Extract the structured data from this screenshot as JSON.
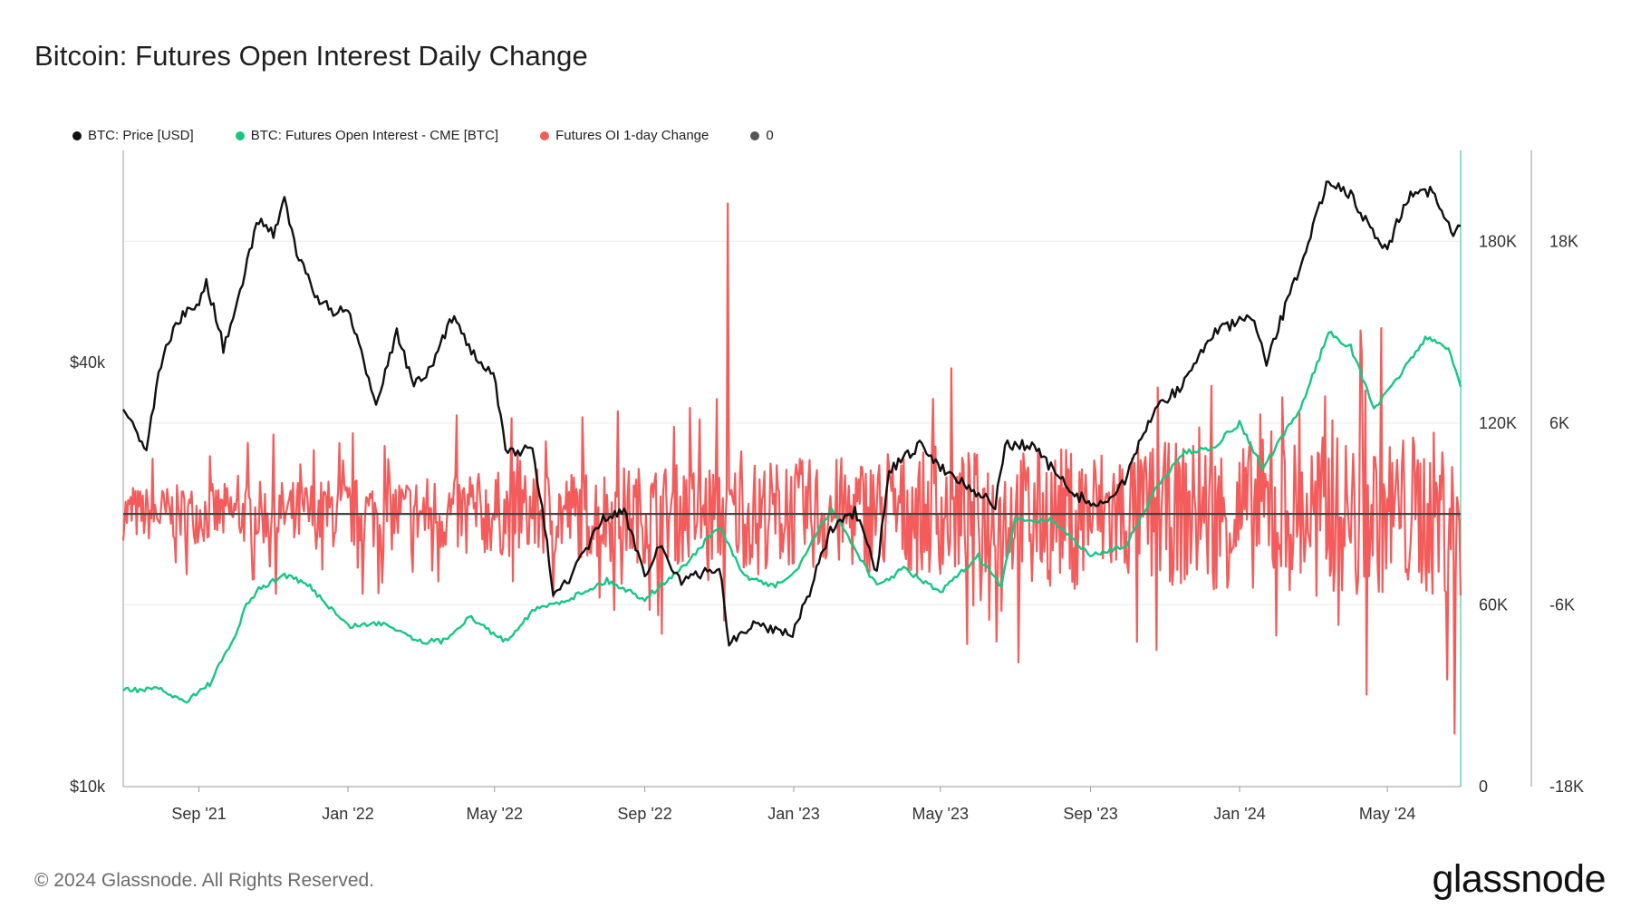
{
  "title": "Bitcoin: Futures Open Interest Daily Change",
  "legend": [
    {
      "label": "BTC: Price [USD]",
      "color": "#111111"
    },
    {
      "label": "BTC: Futures Open Interest - CME [BTC]",
      "color": "#16c784"
    },
    {
      "label": "Futures OI 1-day Change",
      "color": "#f45b5b"
    },
    {
      "label": "0",
      "color": "#555555"
    }
  ],
  "footer": "© 2024 Glassnode. All Rights Reserved.",
  "brand": "glassnode",
  "chart_data": {
    "type": "line",
    "title": "Bitcoin: Futures Open Interest Daily Change",
    "x_ticks": [
      "Sep '21",
      "Jan '22",
      "May '22",
      "Sep '22",
      "Jan '23",
      "May '23",
      "Sep '23",
      "Jan '24",
      "May '24"
    ],
    "x_tick_dates": [
      "2021-09-01",
      "2022-01-01",
      "2022-05-01",
      "2022-09-01",
      "2023-01-01",
      "2023-05-01",
      "2023-09-01",
      "2024-01-01",
      "2024-05-01"
    ],
    "x_range": [
      "2021-07-01",
      "2024-06-30"
    ],
    "axes": {
      "left": {
        "scale": "log",
        "range": [
          10000,
          80000
        ],
        "ticks": [
          "$10k",
          "$40k"
        ],
        "tick_values": [
          10000,
          40000
        ]
      },
      "right1": {
        "scale": "linear",
        "range": [
          0,
          210000
        ],
        "ticks": [
          "0",
          "60K",
          "120K",
          "180K"
        ],
        "tick_values": [
          0,
          60000,
          120000,
          180000
        ]
      },
      "right2": {
        "scale": "linear",
        "range": [
          -18000,
          24000
        ],
        "ticks": [
          "-18K",
          "-6K",
          "6K",
          "18K"
        ],
        "tick_values": [
          -18000,
          -6000,
          6000,
          18000
        ]
      }
    },
    "grid": true,
    "series": [
      {
        "name": "BTC: Price [USD]",
        "axis": "left",
        "color": "#111111",
        "points": [
          [
            "2021-07-01",
            34500
          ],
          [
            "2021-07-20",
            30000
          ],
          [
            "2021-08-01",
            40000
          ],
          [
            "2021-08-15",
            46000
          ],
          [
            "2021-09-01",
            48500
          ],
          [
            "2021-09-07",
            52000
          ],
          [
            "2021-09-21",
            42000
          ],
          [
            "2021-10-01",
            47000
          ],
          [
            "2021-10-20",
            64000
          ],
          [
            "2021-11-01",
            61000
          ],
          [
            "2021-11-10",
            68000
          ],
          [
            "2021-11-20",
            57000
          ],
          [
            "2021-12-05",
            50000
          ],
          [
            "2021-12-20",
            47000
          ],
          [
            "2022-01-01",
            47500
          ],
          [
            "2022-01-10",
            42000
          ],
          [
            "2022-01-24",
            35000
          ],
          [
            "2022-02-10",
            44000
          ],
          [
            "2022-02-24",
            37000
          ],
          [
            "2022-03-10",
            39000
          ],
          [
            "2022-03-29",
            47000
          ],
          [
            "2022-04-10",
            42000
          ],
          [
            "2022-04-30",
            38500
          ],
          [
            "2022-05-10",
            30000
          ],
          [
            "2022-06-01",
            30000
          ],
          [
            "2022-06-13",
            22000
          ],
          [
            "2022-06-18",
            19000
          ],
          [
            "2022-07-01",
            19500
          ],
          [
            "2022-07-29",
            24000
          ],
          [
            "2022-08-15",
            24500
          ],
          [
            "2022-09-01",
            20000
          ],
          [
            "2022-09-13",
            22000
          ],
          [
            "2022-10-01",
            19500
          ],
          [
            "2022-11-01",
            20500
          ],
          [
            "2022-11-09",
            16000
          ],
          [
            "2022-12-01",
            17000
          ],
          [
            "2022-12-31",
            16500
          ],
          [
            "2023-01-12",
            18500
          ],
          [
            "2023-01-31",
            23000
          ],
          [
            "2023-02-20",
            24500
          ],
          [
            "2023-03-10",
            20000
          ],
          [
            "2023-03-20",
            28000
          ],
          [
            "2023-04-14",
            30500
          ],
          [
            "2023-05-01",
            28500
          ],
          [
            "2023-06-15",
            25000
          ],
          [
            "2023-06-23",
            30500
          ],
          [
            "2023-07-15",
            30500
          ],
          [
            "2023-08-17",
            26000
          ],
          [
            "2023-09-11",
            25000
          ],
          [
            "2023-10-01",
            27500
          ],
          [
            "2023-10-24",
            34500
          ],
          [
            "2023-11-15",
            37000
          ],
          [
            "2023-12-10",
            44000
          ],
          [
            "2024-01-11",
            46500
          ],
          [
            "2024-01-23",
            39500
          ],
          [
            "2024-02-15",
            52000
          ],
          [
            "2024-03-01",
            62000
          ],
          [
            "2024-03-14",
            73000
          ],
          [
            "2024-04-01",
            69000
          ],
          [
            "2024-04-17",
            62000
          ],
          [
            "2024-05-01",
            58000
          ],
          [
            "2024-05-20",
            70000
          ],
          [
            "2024-06-07",
            70000
          ],
          [
            "2024-06-24",
            60000
          ],
          [
            "2024-06-30",
            62500
          ]
        ]
      },
      {
        "name": "BTC: Futures Open Interest - CME [BTC]",
        "axis": "right1",
        "color": "#16c784",
        "points": [
          [
            "2021-07-01",
            32000
          ],
          [
            "2021-08-01",
            32000
          ],
          [
            "2021-08-20",
            28000
          ],
          [
            "2021-09-10",
            34000
          ],
          [
            "2021-10-01",
            50000
          ],
          [
            "2021-10-10",
            60000
          ],
          [
            "2021-10-20",
            65000
          ],
          [
            "2021-11-10",
            70000
          ],
          [
            "2021-12-01",
            66000
          ],
          [
            "2022-01-01",
            53000
          ],
          [
            "2022-02-01",
            54000
          ],
          [
            "2022-03-01",
            48000
          ],
          [
            "2022-03-20",
            48000
          ],
          [
            "2022-04-10",
            56000
          ],
          [
            "2022-05-10",
            48000
          ],
          [
            "2022-06-01",
            58000
          ],
          [
            "2022-07-01",
            62000
          ],
          [
            "2022-08-01",
            68000
          ],
          [
            "2022-09-01",
            62000
          ],
          [
            "2022-10-01",
            72000
          ],
          [
            "2022-11-01",
            86000
          ],
          [
            "2022-11-20",
            70000
          ],
          [
            "2022-12-15",
            66000
          ],
          [
            "2023-01-01",
            70000
          ],
          [
            "2023-02-01",
            92000
          ],
          [
            "2023-03-10",
            66000
          ],
          [
            "2023-04-01",
            72000
          ],
          [
            "2023-05-01",
            64000
          ],
          [
            "2023-06-01",
            76000
          ],
          [
            "2023-06-20",
            66000
          ],
          [
            "2023-07-01",
            88000
          ],
          [
            "2023-08-01",
            88000
          ],
          [
            "2023-09-01",
            76000
          ],
          [
            "2023-10-01",
            80000
          ],
          [
            "2023-10-24",
            98000
          ],
          [
            "2023-11-15",
            110000
          ],
          [
            "2023-12-10",
            112000
          ],
          [
            "2024-01-01",
            120000
          ],
          [
            "2024-01-20",
            105000
          ],
          [
            "2024-02-20",
            125000
          ],
          [
            "2024-03-14",
            150000
          ],
          [
            "2024-04-01",
            145000
          ],
          [
            "2024-04-20",
            125000
          ],
          [
            "2024-05-01",
            130000
          ],
          [
            "2024-06-01",
            148000
          ],
          [
            "2024-06-20",
            145000
          ],
          [
            "2024-06-30",
            132000
          ]
        ]
      },
      {
        "name": "Futures OI 1-day Change",
        "axis": "right2",
        "color": "#f45b5b",
        "summary": {
          "max": 20500,
          "min": -14500,
          "notable_spike_date": "2022-11-08"
        }
      },
      {
        "name": "0",
        "axis": "right2",
        "color": "#555555",
        "points": [
          [
            "2021-07-01",
            0
          ],
          [
            "2024-06-30",
            0
          ]
        ]
      }
    ]
  }
}
